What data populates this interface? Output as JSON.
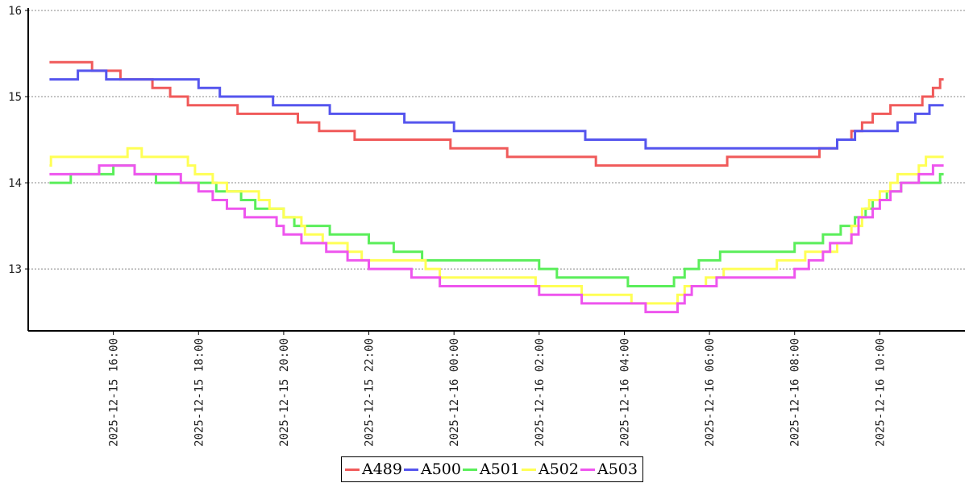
{
  "chart_data": {
    "type": "line",
    "line_style": "step",
    "title": "",
    "xlabel": "",
    "ylabel": "",
    "xlim": [
      "2025-12-15 14:00",
      "2025-12-16 12:00"
    ],
    "ylim": [
      12.3,
      16
    ],
    "y_ticks": [
      13,
      14,
      15,
      16
    ],
    "x_ticks": [
      "2025-12-15 16:00",
      "2025-12-15 18:00",
      "2025-12-15 20:00",
      "2025-12-15 22:00",
      "2025-12-16 00:00",
      "2025-12-16 02:00",
      "2025-12-16 04:00",
      "2025-12-16 06:00",
      "2025-12-16 08:00",
      "2025-12-16 10:00"
    ],
    "grid": "horizontal dotted",
    "legend_position": "bottom-center",
    "series": [
      {
        "name": "A489",
        "color": "#f05a5a",
        "points": [
          [
            "2025-12-15 14:30",
            15.4
          ],
          [
            "2025-12-15 15:30",
            15.3
          ],
          [
            "2025-12-15 16:10",
            15.2
          ],
          [
            "2025-12-15 16:55",
            15.1
          ],
          [
            "2025-12-15 17:20",
            15.0
          ],
          [
            "2025-12-15 17:45",
            14.9
          ],
          [
            "2025-12-15 18:55",
            14.8
          ],
          [
            "2025-12-15 20:20",
            14.7
          ],
          [
            "2025-12-15 20:50",
            14.6
          ],
          [
            "2025-12-15 21:40",
            14.5
          ],
          [
            "2025-12-15 23:55",
            14.4
          ],
          [
            "2025-12-16 01:15",
            14.3
          ],
          [
            "2025-12-16 03:20",
            14.2
          ],
          [
            "2025-12-16 06:25",
            14.3
          ],
          [
            "2025-12-16 08:35",
            14.4
          ],
          [
            "2025-12-16 09:00",
            14.5
          ],
          [
            "2025-12-16 09:20",
            14.6
          ],
          [
            "2025-12-16 09:35",
            14.7
          ],
          [
            "2025-12-16 09:50",
            14.8
          ],
          [
            "2025-12-16 10:15",
            14.9
          ],
          [
            "2025-12-16 11:00",
            15.0
          ],
          [
            "2025-12-16 11:15",
            15.1
          ],
          [
            "2025-12-16 11:25",
            15.2
          ],
          [
            "2025-12-16 11:30",
            15.2
          ]
        ]
      },
      {
        "name": "A500",
        "color": "#5555ee",
        "points": [
          [
            "2025-12-15 14:30",
            15.2
          ],
          [
            "2025-12-15 15:10",
            15.3
          ],
          [
            "2025-12-15 15:50",
            15.2
          ],
          [
            "2025-12-15 18:00",
            15.1
          ],
          [
            "2025-12-15 18:30",
            15.0
          ],
          [
            "2025-12-15 19:45",
            14.9
          ],
          [
            "2025-12-15 21:05",
            14.8
          ],
          [
            "2025-12-15 22:50",
            14.7
          ],
          [
            "2025-12-16 00:00",
            14.6
          ],
          [
            "2025-12-16 03:05",
            14.5
          ],
          [
            "2025-12-16 04:30",
            14.4
          ],
          [
            "2025-12-16 09:00",
            14.5
          ],
          [
            "2025-12-16 09:25",
            14.6
          ],
          [
            "2025-12-16 10:25",
            14.7
          ],
          [
            "2025-12-16 10:50",
            14.8
          ],
          [
            "2025-12-16 11:10",
            14.9
          ],
          [
            "2025-12-16 11:30",
            14.9
          ]
        ]
      },
      {
        "name": "A501",
        "color": "#5aee5a",
        "points": [
          [
            "2025-12-15 14:30",
            14.0
          ],
          [
            "2025-12-15 15:00",
            14.1
          ],
          [
            "2025-12-15 16:00",
            14.2
          ],
          [
            "2025-12-15 16:30",
            14.1
          ],
          [
            "2025-12-15 17:00",
            14.0
          ],
          [
            "2025-12-15 18:25",
            13.9
          ],
          [
            "2025-12-15 19:00",
            13.8
          ],
          [
            "2025-12-15 19:20",
            13.7
          ],
          [
            "2025-12-15 20:00",
            13.6
          ],
          [
            "2025-12-15 20:15",
            13.5
          ],
          [
            "2025-12-15 21:05",
            13.4
          ],
          [
            "2025-12-15 22:00",
            13.3
          ],
          [
            "2025-12-15 22:35",
            13.2
          ],
          [
            "2025-12-15 23:15",
            13.1
          ],
          [
            "2025-12-16 02:00",
            13.0
          ],
          [
            "2025-12-16 02:25",
            12.9
          ],
          [
            "2025-12-16 04:05",
            12.8
          ],
          [
            "2025-12-16 05:10",
            12.9
          ],
          [
            "2025-12-16 05:25",
            13.0
          ],
          [
            "2025-12-16 05:45",
            13.1
          ],
          [
            "2025-12-16 06:15",
            13.2
          ],
          [
            "2025-12-16 08:00",
            13.3
          ],
          [
            "2025-12-16 08:40",
            13.4
          ],
          [
            "2025-12-16 09:05",
            13.5
          ],
          [
            "2025-12-16 09:25",
            13.6
          ],
          [
            "2025-12-16 09:40",
            13.7
          ],
          [
            "2025-12-16 09:50",
            13.8
          ],
          [
            "2025-12-16 10:10",
            13.9
          ],
          [
            "2025-12-16 10:30",
            14.0
          ],
          [
            "2025-12-16 11:25",
            14.1
          ],
          [
            "2025-12-16 11:30",
            14.1
          ]
        ]
      },
      {
        "name": "A502",
        "color": "#ffff55",
        "points": [
          [
            "2025-12-15 14:30",
            14.2
          ],
          [
            "2025-12-15 14:32",
            14.3
          ],
          [
            "2025-12-15 16:20",
            14.4
          ],
          [
            "2025-12-15 16:40",
            14.3
          ],
          [
            "2025-12-15 17:45",
            14.2
          ],
          [
            "2025-12-15 17:55",
            14.1
          ],
          [
            "2025-12-15 18:20",
            14.0
          ],
          [
            "2025-12-15 18:40",
            13.9
          ],
          [
            "2025-12-15 19:25",
            13.8
          ],
          [
            "2025-12-15 19:40",
            13.7
          ],
          [
            "2025-12-15 20:00",
            13.6
          ],
          [
            "2025-12-15 20:25",
            13.5
          ],
          [
            "2025-12-15 20:30",
            13.4
          ],
          [
            "2025-12-15 20:55",
            13.3
          ],
          [
            "2025-12-15 21:30",
            13.2
          ],
          [
            "2025-12-15 21:50",
            13.1
          ],
          [
            "2025-12-15 23:20",
            13.0
          ],
          [
            "2025-12-15 23:40",
            12.9
          ],
          [
            "2025-12-16 01:55",
            12.8
          ],
          [
            "2025-12-16 03:00",
            12.7
          ],
          [
            "2025-12-16 04:10",
            12.6
          ],
          [
            "2025-12-16 05:15",
            12.7
          ],
          [
            "2025-12-16 05:25",
            12.8
          ],
          [
            "2025-12-16 05:55",
            12.9
          ],
          [
            "2025-12-16 06:20",
            13.0
          ],
          [
            "2025-12-16 07:35",
            13.1
          ],
          [
            "2025-12-16 08:15",
            13.2
          ],
          [
            "2025-12-16 09:00",
            13.3
          ],
          [
            "2025-12-16 09:20",
            13.5
          ],
          [
            "2025-12-16 09:35",
            13.7
          ],
          [
            "2025-12-16 09:45",
            13.8
          ],
          [
            "2025-12-16 10:00",
            13.9
          ],
          [
            "2025-12-16 10:15",
            14.0
          ],
          [
            "2025-12-16 10:25",
            14.1
          ],
          [
            "2025-12-16 10:55",
            14.2
          ],
          [
            "2025-12-16 11:05",
            14.3
          ],
          [
            "2025-12-16 11:30",
            14.3
          ]
        ]
      },
      {
        "name": "A503",
        "color": "#ee55ee",
        "points": [
          [
            "2025-12-15 14:30",
            14.1
          ],
          [
            "2025-12-15 15:40",
            14.2
          ],
          [
            "2025-12-15 16:30",
            14.1
          ],
          [
            "2025-12-15 17:35",
            14.0
          ],
          [
            "2025-12-15 18:00",
            13.9
          ],
          [
            "2025-12-15 18:20",
            13.8
          ],
          [
            "2025-12-15 18:40",
            13.7
          ],
          [
            "2025-12-15 19:05",
            13.6
          ],
          [
            "2025-12-15 19:50",
            13.5
          ],
          [
            "2025-12-15 20:00",
            13.4
          ],
          [
            "2025-12-15 20:25",
            13.3
          ],
          [
            "2025-12-15 21:00",
            13.2
          ],
          [
            "2025-12-15 21:30",
            13.1
          ],
          [
            "2025-12-15 22:00",
            13.0
          ],
          [
            "2025-12-15 23:00",
            12.9
          ],
          [
            "2025-12-15 23:40",
            12.8
          ],
          [
            "2025-12-16 02:00",
            12.7
          ],
          [
            "2025-12-16 03:00",
            12.6
          ],
          [
            "2025-12-16 04:30",
            12.5
          ],
          [
            "2025-12-16 05:15",
            12.6
          ],
          [
            "2025-12-16 05:25",
            12.7
          ],
          [
            "2025-12-16 05:35",
            12.8
          ],
          [
            "2025-12-16 06:10",
            12.9
          ],
          [
            "2025-12-16 08:00",
            13.0
          ],
          [
            "2025-12-16 08:20",
            13.1
          ],
          [
            "2025-12-16 08:40",
            13.2
          ],
          [
            "2025-12-16 08:50",
            13.3
          ],
          [
            "2025-12-16 09:20",
            13.4
          ],
          [
            "2025-12-16 09:30",
            13.6
          ],
          [
            "2025-12-16 09:50",
            13.7
          ],
          [
            "2025-12-16 10:00",
            13.8
          ],
          [
            "2025-12-16 10:15",
            13.9
          ],
          [
            "2025-12-16 10:30",
            14.0
          ],
          [
            "2025-12-16 10:55",
            14.1
          ],
          [
            "2025-12-16 11:15",
            14.2
          ],
          [
            "2025-12-16 11:30",
            14.2
          ]
        ]
      }
    ]
  }
}
